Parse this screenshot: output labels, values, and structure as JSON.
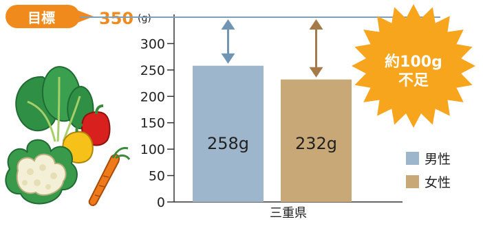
{
  "chart_data": {
    "type": "bar",
    "categories": [
      "三重県"
    ],
    "series": [
      {
        "name": "男性",
        "values": [
          258
        ],
        "label": "258g",
        "color": "#9db6cc"
      },
      {
        "name": "女性",
        "values": [
          232
        ],
        "label": "232g",
        "color": "#c9a877"
      }
    ],
    "ylim": [
      0,
      350
    ],
    "yticks": [
      0,
      50,
      100,
      150,
      200,
      250,
      300,
      350
    ],
    "unit": "(g)",
    "target": {
      "label": "目標",
      "value": 350,
      "value_text": "350"
    },
    "badge": {
      "line1": "約100g",
      "line2": "不足"
    },
    "legend_position": "right"
  },
  "colors": {
    "target_line": "#7f9fb8",
    "male_arrow": "#6f95b3",
    "female_arrow": "#a47a48",
    "accent": "#f08a1d",
    "burst": "#f7a51d"
  },
  "illustration": {
    "name": "vegetables-illustration"
  }
}
